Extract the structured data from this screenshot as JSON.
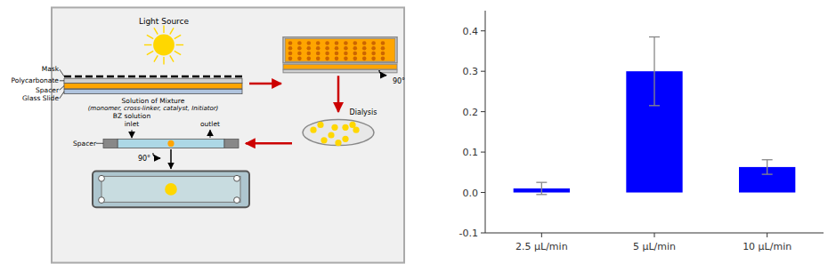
{
  "chart_data": {
    "type": "bar",
    "categories": [
      "2.5 μL/min",
      "5 μL/min",
      "10 μL/min"
    ],
    "values": [
      0.01,
      0.3,
      0.063
    ],
    "errors": [
      0.015,
      0.085,
      0.018
    ],
    "color": "#0000FF",
    "ylim": [
      -0.1,
      0.45
    ],
    "yticks": [
      -0.1,
      {
        "value": 0.0,
        "label": "0.0"
      },
      0.1,
      0.2,
      0.3,
      0.4
    ],
    "grid": false,
    "annotations": [
      "Light Source",
      "Mask",
      "Polycarbonate",
      "Spacer",
      "Glass Slide",
      "Solution of Mixture",
      "(monomer, cross-linker, catalyst, Initiator)",
      "90°",
      "Dialysis",
      "BZ solution\ninlet",
      "outlet",
      "Spacer",
      "90°"
    ]
  }
}
